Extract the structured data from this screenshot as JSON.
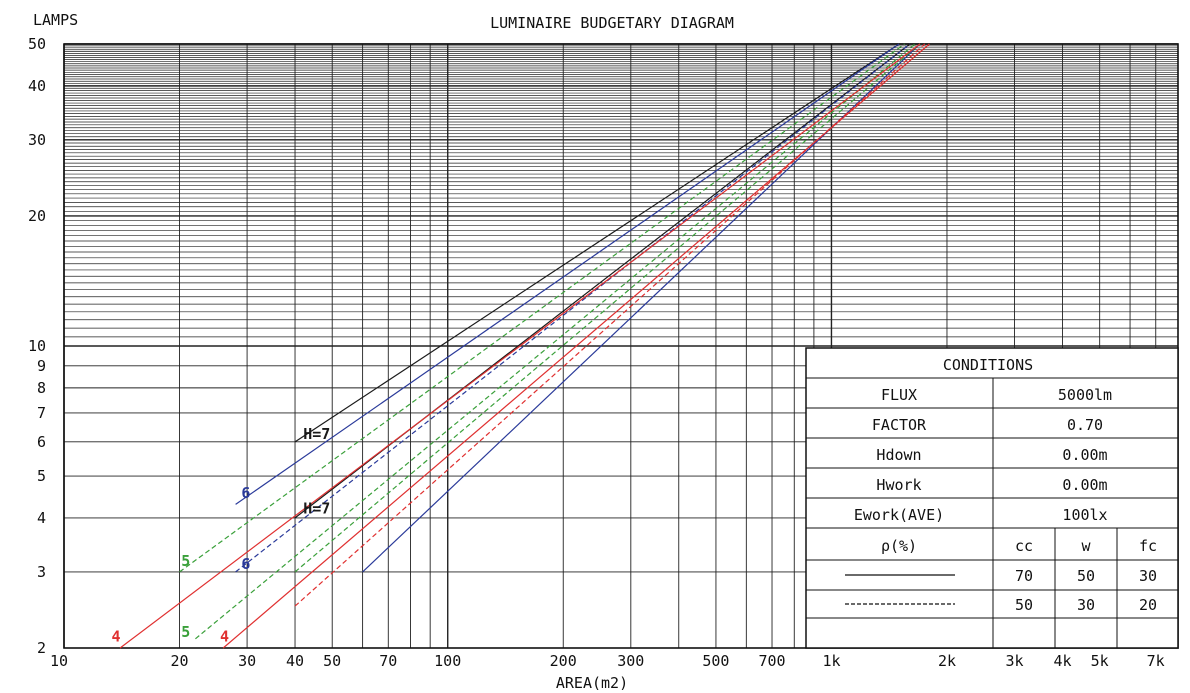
{
  "chart_data": {
    "type": "line",
    "title": "LUMINAIRE BUDGETARY DIAGRAM",
    "ylabel": "LAMPS",
    "xlabel": "AREA(m2)",
    "xscale": "log",
    "yscale": "log",
    "xlim": [
      10,
      8000
    ],
    "ylim": [
      2,
      50
    ],
    "grid": true,
    "x_tick_labels": [
      {
        "v": 10,
        "label": "10"
      },
      {
        "v": 20,
        "label": "20"
      },
      {
        "v": 30,
        "label": "30"
      },
      {
        "v": 40,
        "label": "40"
      },
      {
        "v": 50,
        "label": "50"
      },
      {
        "v": 70,
        "label": "70"
      },
      {
        "v": 100,
        "label": "100"
      },
      {
        "v": 200,
        "label": "200"
      },
      {
        "v": 300,
        "label": "300"
      },
      {
        "v": 500,
        "label": "500"
      },
      {
        "v": 700,
        "label": "700"
      },
      {
        "v": 1000,
        "label": "1k"
      },
      {
        "v": 2000,
        "label": "2k"
      },
      {
        "v": 3000,
        "label": "3k"
      },
      {
        "v": 4000,
        "label": "4k"
      },
      {
        "v": 5000,
        "label": "5k"
      },
      {
        "v": 7000,
        "label": "7k"
      }
    ],
    "y_tick_labels": [
      {
        "v": 2,
        "label": "2"
      },
      {
        "v": 3,
        "label": "3"
      },
      {
        "v": 4,
        "label": "4"
      },
      {
        "v": 5,
        "label": "5"
      },
      {
        "v": 6,
        "label": "6"
      },
      {
        "v": 7,
        "label": "7"
      },
      {
        "v": 8,
        "label": "8"
      },
      {
        "v": 9,
        "label": "9"
      },
      {
        "v": 10,
        "label": "10"
      },
      {
        "v": 20,
        "label": "20"
      },
      {
        "v": 30,
        "label": "30"
      },
      {
        "v": 40,
        "label": "40"
      },
      {
        "v": 50,
        "label": "50"
      }
    ],
    "series": [
      {
        "color": "#1a1a1a",
        "dashed": false,
        "x": [
          40,
          1500
        ],
        "y": [
          6,
          50
        ]
      },
      {
        "color": "#1a1a1a",
        "dashed": false,
        "x": [
          40,
          1600
        ],
        "y": [
          4,
          50
        ]
      },
      {
        "color": "#2a3a9a",
        "dashed": false,
        "x": [
          28,
          1500
        ],
        "y": [
          4.3,
          50
        ]
      },
      {
        "color": "#2a3a9a",
        "dashed": true,
        "x": [
          28,
          1600
        ],
        "y": [
          3,
          50
        ]
      },
      {
        "color": "#2a3a9a",
        "dashed": false,
        "x": [
          60,
          1700
        ],
        "y": [
          3,
          50
        ]
      },
      {
        "color": "#3aa03a",
        "dashed": true,
        "x": [
          20,
          1550
        ],
        "y": [
          3,
          50
        ]
      },
      {
        "color": "#3aa03a",
        "dashed": true,
        "x": [
          22,
          1650
        ],
        "y": [
          2.1,
          50
        ]
      },
      {
        "color": "#3aa03a",
        "dashed": true,
        "x": [
          40,
          1700
        ],
        "y": [
          3,
          50
        ]
      },
      {
        "color": "#e03030",
        "dashed": false,
        "x": [
          14,
          1700
        ],
        "y": [
          2,
          50
        ]
      },
      {
        "color": "#e03030",
        "dashed": false,
        "x": [
          26,
          1800
        ],
        "y": [
          2,
          50
        ]
      },
      {
        "color": "#e03030",
        "dashed": true,
        "x": [
          40,
          1750
        ],
        "y": [
          2.5,
          50
        ]
      }
    ],
    "annotations": [
      {
        "text": "H=7",
        "x": 42,
        "y": 6.1,
        "color": "#1a1a1a"
      },
      {
        "text": "H=7",
        "x": 42,
        "y": 4.1,
        "color": "#1a1a1a"
      },
      {
        "text": "6",
        "x": 29,
        "y": 4.45,
        "color": "#2a3a9a"
      },
      {
        "text": "6",
        "x": 29,
        "y": 3.05,
        "color": "#2a3a9a"
      },
      {
        "text": "5",
        "x": 20.2,
        "y": 3.1,
        "color": "#3aa03a"
      },
      {
        "text": "5",
        "x": 20.2,
        "y": 2.12,
        "color": "#3aa03a"
      },
      {
        "text": "4",
        "x": 13.3,
        "y": 2.07,
        "color": "#e03030"
      },
      {
        "text": "4",
        "x": 25.5,
        "y": 2.07,
        "color": "#e03030"
      }
    ]
  },
  "conditions": {
    "title": "CONDITIONS",
    "rows": [
      {
        "label": "FLUX",
        "value": "5000lm"
      },
      {
        "label": "FACTOR",
        "value": "0.70"
      },
      {
        "label": "Hdown",
        "value": "0.00m"
      },
      {
        "label": "Hwork",
        "value": "0.00m"
      },
      {
        "label": "Ework(AVE)",
        "value": "100lx"
      }
    ],
    "rho_label": "ρ(%)",
    "rho_headers": [
      "cc",
      "w",
      "fc"
    ],
    "rho_rows": [
      {
        "line_style": "solid",
        "values": [
          "70",
          "50",
          "30"
        ]
      },
      {
        "line_style": "dashed",
        "values": [
          "50",
          "30",
          "20"
        ]
      }
    ]
  }
}
